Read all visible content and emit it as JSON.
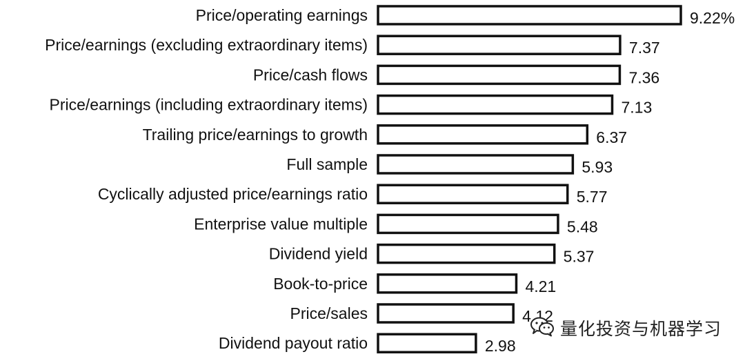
{
  "chart_data": {
    "type": "bar",
    "orientation": "horizontal",
    "categories": [
      "Price/operating earnings",
      "Price/earnings (excluding extraordinary items)",
      "Price/cash flows",
      "Price/earnings (including extraordinary items)",
      "Trailing price/earnings to growth",
      "Full sample",
      "Cyclically adjusted price/earnings ratio",
      "Enterprise value multiple",
      "Dividend yield",
      "Book-to-price",
      "Price/sales",
      "Dividend payout ratio"
    ],
    "values": [
      9.22,
      7.37,
      7.36,
      7.13,
      6.37,
      5.93,
      5.77,
      5.48,
      5.37,
      4.21,
      4.12,
      2.98
    ],
    "value_labels": [
      "9.22%",
      "7.37",
      "7.36",
      "7.13",
      "6.37",
      "5.93",
      "5.77",
      "5.48",
      "5.37",
      "4.21",
      "4.12",
      "2.98"
    ],
    "xlim": [
      0,
      9.22
    ],
    "bar_fill": "#ffffff",
    "bar_stroke": "#111111",
    "grid": false
  },
  "watermark": {
    "text": "量化投资与机器学习",
    "icon": "wechat-icon"
  }
}
